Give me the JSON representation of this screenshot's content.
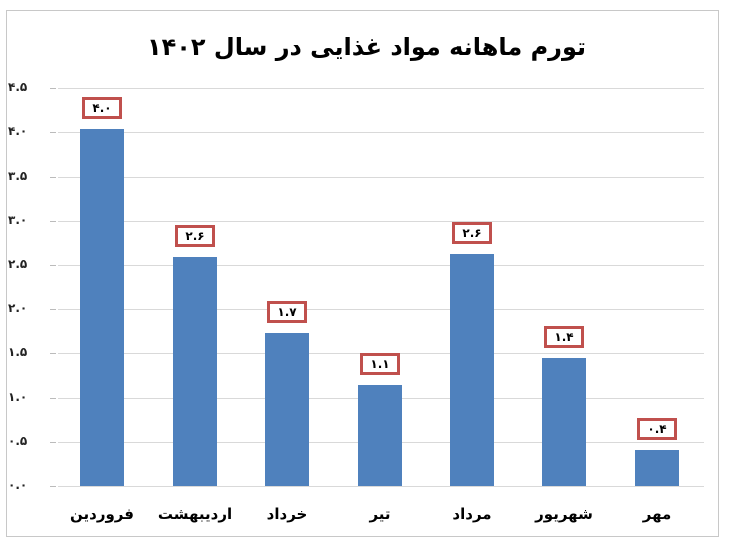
{
  "chart_data": {
    "type": "bar",
    "title": "تورم ماهانه مواد غذایی در سال ۱۴۰۲",
    "xlabel": "",
    "ylabel": "",
    "ylim": [
      0,
      4.5
    ],
    "grid": true,
    "legend": null,
    "y_ticks": [
      "۰.۰",
      "۰.۵",
      "۱.۰",
      "۱.۵",
      "۲.۰",
      "۲.۵",
      "۳.۰",
      "۳.۵",
      "۴.۰",
      "۴.۵"
    ],
    "categories": [
      "فروردین",
      "اردیبهشت",
      "خرداد",
      "تیر",
      "مرداد",
      "شهریور",
      "مهر"
    ],
    "values": [
      4.0,
      2.6,
      1.7,
      1.1,
      2.6,
      1.4,
      0.4
    ],
    "value_labels": [
      "۴.۰",
      "۲.۶",
      "۱.۷",
      "۱.۱",
      "۲.۶",
      "۱.۴",
      "۰.۴"
    ],
    "bar_color": "#4f81bd",
    "label_border_color": "#c0504d"
  }
}
